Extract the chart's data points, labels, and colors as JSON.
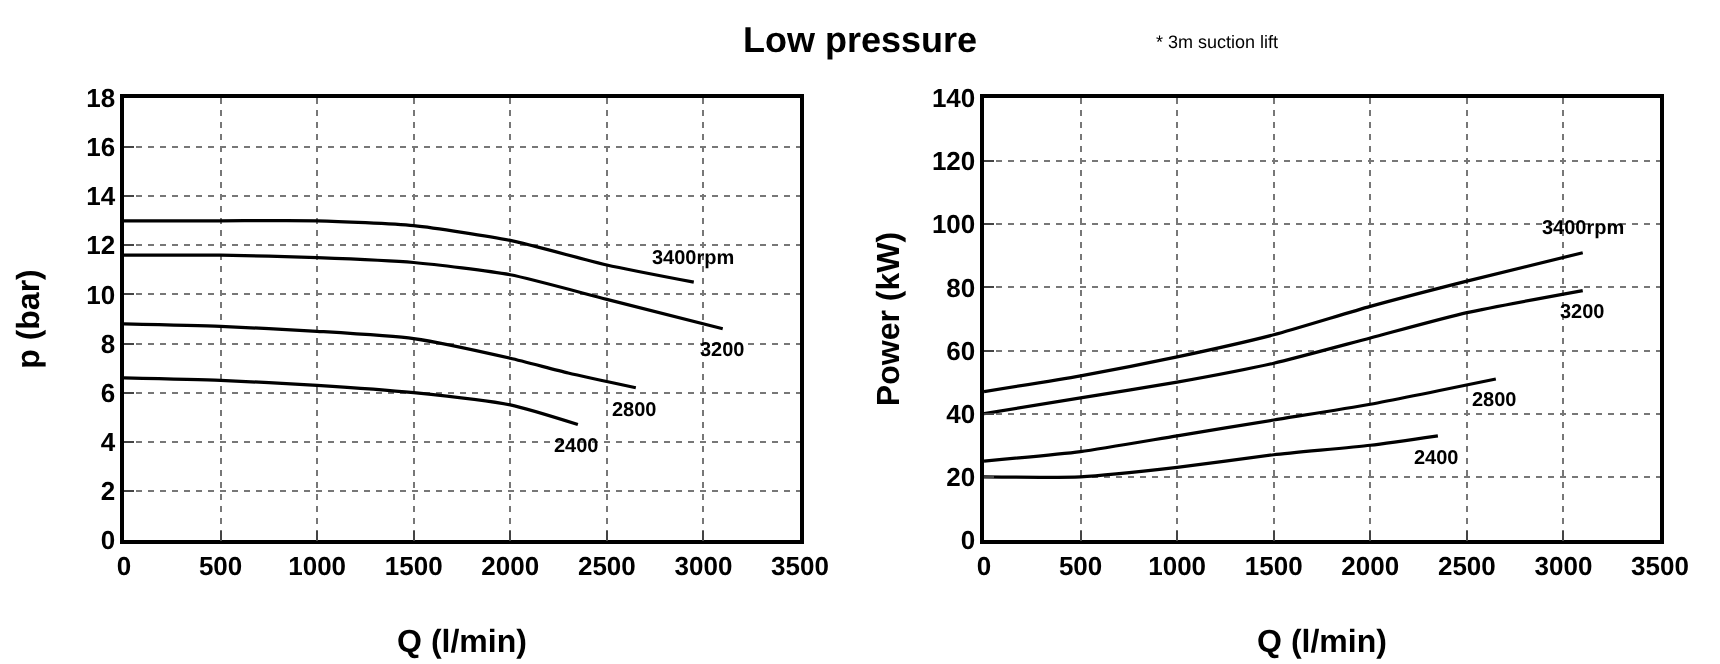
{
  "chart_data": [
    {
      "type": "line",
      "title": "Low pressure",
      "annotations": [
        "* 3m suction lift"
      ],
      "xlabel": "Q (l/min)",
      "ylabel": "p (bar)",
      "xlim": [
        0,
        3500
      ],
      "xticks": [
        0,
        500,
        1000,
        1500,
        2000,
        2500,
        3000,
        3500
      ],
      "ylim": [
        0,
        18
      ],
      "yticks": [
        0,
        2,
        4,
        6,
        8,
        10,
        12,
        14,
        16,
        18
      ],
      "grid": true,
      "line_style": "solid",
      "series": [
        {
          "name": "3400rpm",
          "color": "#000000",
          "x": [
            0,
            500,
            1000,
            1500,
            2000,
            2500,
            2950
          ],
          "values": [
            13,
            13,
            13,
            12.8,
            12.2,
            11.2,
            10.5
          ]
        },
        {
          "name": "3200",
          "color": "#000000",
          "x": [
            0,
            500,
            1000,
            1500,
            2000,
            2500,
            3100
          ],
          "values": [
            11.6,
            11.6,
            11.5,
            11.3,
            10.8,
            9.8,
            8.6
          ]
        },
        {
          "name": "2800",
          "color": "#000000",
          "x": [
            0,
            500,
            1000,
            1500,
            2000,
            2300,
            2650
          ],
          "values": [
            8.8,
            8.7,
            8.5,
            8.2,
            7.4,
            6.8,
            6.2
          ]
        },
        {
          "name": "2400",
          "color": "#000000",
          "x": [
            0,
            500,
            1000,
            1500,
            2000,
            2350
          ],
          "values": [
            6.6,
            6.5,
            6.3,
            6.0,
            5.5,
            4.7
          ]
        }
      ]
    },
    {
      "type": "line",
      "xlabel": "Q (l/min)",
      "ylabel": "Power (kW)",
      "xlim": [
        0,
        3500
      ],
      "xticks": [
        0,
        500,
        1000,
        1500,
        2000,
        2500,
        3000,
        3500
      ],
      "ylim": [
        0,
        140
      ],
      "yticks": [
        0,
        20,
        40,
        60,
        80,
        100,
        120,
        140
      ],
      "grid": true,
      "line_style": "solid",
      "series": [
        {
          "name": "3400rpm",
          "color": "#000000",
          "x": [
            0,
            500,
            1000,
            1500,
            2000,
            2500,
            3100
          ],
          "values": [
            47,
            52,
            58,
            65,
            74,
            82,
            91
          ]
        },
        {
          "name": "3200",
          "color": "#000000",
          "x": [
            0,
            500,
            1000,
            1500,
            2000,
            2500,
            3100
          ],
          "values": [
            40,
            45,
            50,
            56,
            64,
            72,
            79
          ]
        },
        {
          "name": "2800",
          "color": "#000000",
          "x": [
            0,
            500,
            1000,
            1500,
            2000,
            2650
          ],
          "values": [
            25,
            28,
            33,
            38,
            43,
            51
          ]
        },
        {
          "name": "2400",
          "color": "#000000",
          "x": [
            0,
            500,
            1000,
            1500,
            2000,
            2350
          ],
          "values": [
            20,
            20,
            23,
            27,
            30,
            33
          ]
        }
      ]
    }
  ]
}
